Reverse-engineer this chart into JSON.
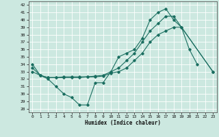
{
  "xlabel": "Humidex (Indice chaleur)",
  "bg_color": "#cce8e0",
  "grid_color": "#aad4cc",
  "line_color": "#1a6e60",
  "xlim": [
    -0.5,
    23.5
  ],
  "ylim": [
    27.5,
    42.5
  ],
  "xticks": [
    0,
    1,
    2,
    3,
    4,
    5,
    6,
    7,
    8,
    9,
    10,
    11,
    12,
    13,
    14,
    15,
    16,
    17,
    18,
    19,
    20,
    21,
    22,
    23
  ],
  "yticks": [
    28,
    29,
    30,
    31,
    32,
    33,
    34,
    35,
    36,
    37,
    38,
    39,
    40,
    41,
    42
  ],
  "s1x": [
    0,
    1,
    2,
    3,
    4,
    5,
    6,
    7,
    8,
    9,
    10,
    11,
    12,
    13,
    14,
    15,
    16,
    17,
    18,
    19,
    20,
    21
  ],
  "s1y": [
    34.0,
    32.5,
    32.0,
    31.0,
    30.0,
    29.5,
    28.5,
    28.5,
    31.5,
    31.5,
    33.0,
    35.0,
    35.5,
    36.0,
    37.5,
    40.0,
    41.0,
    41.5,
    40.0,
    39.0,
    36.0,
    34.0
  ],
  "s2x": [
    0,
    1,
    2,
    3,
    4,
    5,
    6,
    7,
    8,
    9,
    10,
    11,
    12,
    13,
    14,
    15,
    16,
    17,
    18,
    19,
    23
  ],
  "s2y": [
    33.0,
    32.5,
    32.2,
    32.2,
    32.2,
    32.2,
    32.2,
    32.3,
    32.3,
    32.4,
    32.8,
    33.0,
    33.5,
    34.5,
    35.5,
    37.0,
    38.0,
    38.5,
    39.0,
    39.0,
    33.0
  ],
  "s3x": [
    0,
    1,
    2,
    3,
    4,
    5,
    6,
    7,
    8,
    9,
    10,
    11,
    12,
    13,
    14,
    15,
    16,
    17,
    18,
    23
  ],
  "s3y": [
    33.5,
    32.5,
    32.2,
    32.2,
    32.3,
    32.3,
    32.3,
    32.3,
    32.4,
    32.5,
    33.0,
    33.5,
    34.5,
    35.5,
    37.0,
    38.5,
    39.5,
    40.5,
    40.5,
    33.0
  ]
}
